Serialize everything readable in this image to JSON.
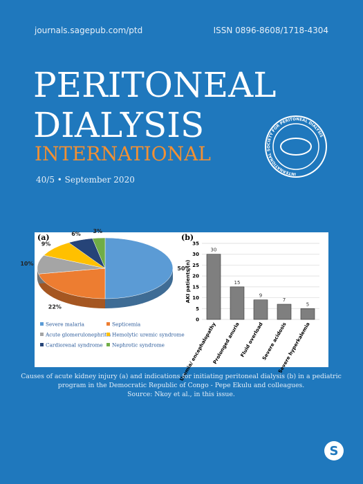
{
  "header": {
    "url": "journals.sagepub.com/ptd",
    "issn": "ISSN 0896-8608/1718-4304"
  },
  "title": {
    "line1": "PERITONEAL",
    "line2": "DIALYSIS",
    "line3": "INTERNATIONAL"
  },
  "issue": "40/5 • September 2020",
  "society_logo": "INTERNATIONAL SOCIETY FOR PERITONEAL DIALYSIS",
  "chart_data": [
    {
      "type": "pie",
      "panel_label": "(a)",
      "categories": [
        "Severe malaria",
        "Septicemia",
        "Acute glomerulonephritis",
        "Hemolytic uremic syndrome",
        "Cardiorenal syndrome",
        "Nephrotic syndrome"
      ],
      "values": [
        50,
        22,
        10,
        9,
        6,
        3
      ],
      "value_labels": [
        "50%",
        "22%",
        "10%",
        "9%",
        "6%",
        "3%"
      ],
      "colors": [
        "#5b9bd5",
        "#ed7d31",
        "#a5a5a5",
        "#ffc000",
        "#264478",
        "#70ad47"
      ]
    },
    {
      "type": "bar",
      "panel_label": "(b)",
      "ylabel": "AKI patients (n)",
      "categories": [
        "Uremia/ encephalopathy",
        "Prolonged anuria",
        "Fluid overload",
        "Severe acidosis",
        "Severe hyperkalemia"
      ],
      "values": [
        30,
        15,
        9,
        7,
        5
      ],
      "color": "#7f7f7f",
      "ylim": [
        0,
        35
      ],
      "yticks": [
        0,
        5,
        10,
        15,
        20,
        25,
        30,
        35
      ],
      "grid": true
    }
  ],
  "caption": [
    "Causes of acute kidney injury (a) and indications for initiating peritoneal dialysis (b) in a pediatric",
    "program in the Democratic Republic of Congo - Pepe Ekulu and colleagues.",
    "Source: Nkoy et al., in this issue."
  ],
  "publisher_logo": "S"
}
